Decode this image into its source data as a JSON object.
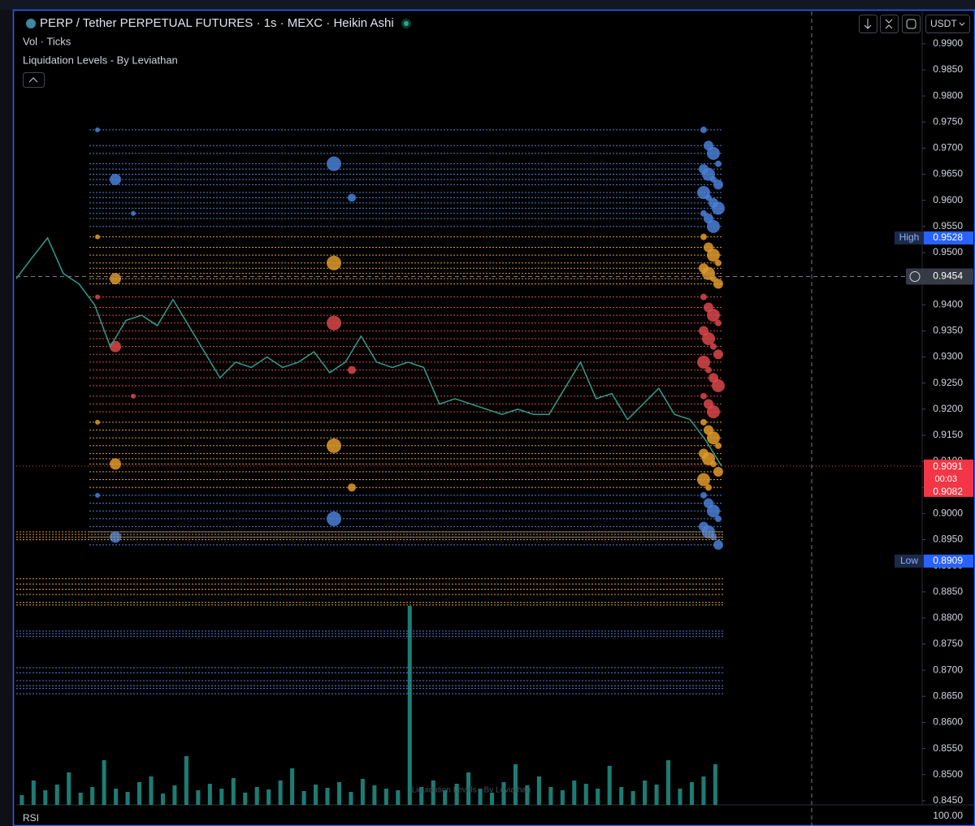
{
  "header": {
    "title": "PERP / Tether PERPETUAL FUTURES · 1s · MEXC · Heikin Ashi",
    "indicator_1": "Vol · Ticks",
    "indicator_2": "Liquidation Levels - By Leviathan",
    "currency": "USDT"
  },
  "chart_data": {
    "type": "line",
    "color": "#2f9e8f",
    "categories": [
      null,
      null,
      null,
      null,
      null,
      null,
      null,
      null,
      null,
      null,
      null,
      null,
      null,
      null,
      null,
      null,
      null,
      null,
      null,
      null,
      null,
      null,
      null,
      null,
      null,
      null,
      null,
      null,
      null,
      null,
      null,
      null,
      null,
      null,
      null,
      null,
      null,
      null,
      null,
      null,
      null,
      null,
      null,
      null,
      null,
      null
    ],
    "values": [
      0.945,
      0.949,
      0.9528,
      0.946,
      0.944,
      0.94,
      0.932,
      0.937,
      0.938,
      0.936,
      0.941,
      0.936,
      0.931,
      0.926,
      0.929,
      0.928,
      0.93,
      0.928,
      0.929,
      0.931,
      0.927,
      0.929,
      0.934,
      0.929,
      0.928,
      0.929,
      0.928,
      0.921,
      0.922,
      0.921,
      0.92,
      0.919,
      0.92,
      0.919,
      0.919,
      0.924,
      0.929,
      0.922,
      0.923,
      0.918,
      0.921,
      0.924,
      0.919,
      0.918,
      0.914,
      0.9091
    ],
    "ylim": [
      0.8442,
      0.9962
    ],
    "yticks": [
      {
        "value": 0.99,
        "label": "0.9900"
      },
      {
        "value": 0.985,
        "label": "0.9850"
      },
      {
        "value": 0.98,
        "label": "0.9800"
      },
      {
        "value": 0.975,
        "label": "0.9750"
      },
      {
        "value": 0.97,
        "label": "0.9700"
      },
      {
        "value": 0.965,
        "label": "0.9650"
      },
      {
        "value": 0.96,
        "label": "0.9600"
      },
      {
        "value": 0.955,
        "label": "0.9550"
      },
      {
        "value": 0.95,
        "label": "0.9500"
      },
      {
        "value": 0.945,
        "label": "0.9450"
      },
      {
        "value": 0.94,
        "label": "0.9400"
      },
      {
        "value": 0.935,
        "label": "0.9350"
      },
      {
        "value": 0.93,
        "label": "0.9300"
      },
      {
        "value": 0.925,
        "label": "0.9250"
      },
      {
        "value": 0.92,
        "label": "0.9200"
      },
      {
        "value": 0.915,
        "label": "0.9150"
      },
      {
        "value": 0.91,
        "label": "0.9100"
      },
      {
        "value": 0.905,
        "label": "0.9050"
      },
      {
        "value": 0.9,
        "label": "0.9000"
      },
      {
        "value": 0.895,
        "label": "0.8950"
      },
      {
        "value": 0.89,
        "label": "0.8900"
      },
      {
        "value": 0.885,
        "label": "0.8850"
      },
      {
        "value": 0.88,
        "label": "0.8800"
      },
      {
        "value": 0.875,
        "label": "0.8750"
      },
      {
        "value": 0.87,
        "label": "0.8700"
      },
      {
        "value": 0.865,
        "label": "0.8650"
      },
      {
        "value": 0.86,
        "label": "0.8600"
      },
      {
        "value": 0.855,
        "label": "0.8550"
      },
      {
        "value": 0.85,
        "label": "0.8500"
      },
      {
        "value": 0.845,
        "label": "0.8450"
      }
    ],
    "liquidation_levels": [
      {
        "color": "#4a7fd6",
        "values": [
          0.9735,
          0.9705,
          0.969,
          0.967,
          0.966,
          0.965,
          0.964,
          0.963,
          0.9615,
          0.9605,
          0.9595,
          0.9585,
          0.9575,
          0.9565,
          0.955
        ]
      },
      {
        "color": "#e09a2b",
        "values": [
          0.953,
          0.951,
          0.9495,
          0.948,
          0.947,
          0.946,
          0.945,
          0.944
        ]
      },
      {
        "color": "#d9474a",
        "values": [
          0.9415,
          0.9395,
          0.938,
          0.9365,
          0.935,
          0.9335,
          0.932,
          0.9305,
          0.929,
          0.9275,
          0.926,
          0.9245,
          0.9225,
          0.921,
          0.9195
        ]
      },
      {
        "color": "#e09a2b",
        "values": [
          0.9175,
          0.916,
          0.9145,
          0.913,
          0.9115,
          0.9105,
          0.9095,
          0.908,
          0.9065,
          0.905
        ]
      },
      {
        "color": "#4a7fd6",
        "values": [
          0.9035,
          0.902,
          0.9005,
          0.899,
          0.8975,
          0.8965,
          0.8955,
          0.894
        ]
      }
    ],
    "extended_levels": [
      {
        "color": "#e09a2b",
        "values": [
          0.8965,
          0.896,
          0.8955,
          0.895,
          0.8875,
          0.8865,
          0.8855,
          0.8845,
          0.883,
          0.8825
        ]
      },
      {
        "color": "#4a7fd6",
        "values": [
          0.8775,
          0.877,
          0.8765,
          0.8705,
          0.8695,
          0.868,
          0.867,
          0.8665,
          0.8655
        ]
      }
    ],
    "volume": {
      "color": "#26a69a",
      "values": [
        12,
        30,
        18,
        25,
        40,
        15,
        22,
        55,
        20,
        16,
        28,
        35,
        14,
        24,
        60,
        18,
        26,
        20,
        33,
        15,
        22,
        19,
        30,
        45,
        17,
        25,
        21,
        28,
        16,
        32,
        24,
        20,
        18,
        245,
        22,
        30,
        18,
        26,
        40,
        20,
        15,
        28,
        50,
        24,
        35,
        22,
        18,
        30,
        26,
        20,
        48,
        22,
        17,
        30,
        25,
        55,
        20,
        28,
        35,
        50
      ]
    },
    "high": {
      "name": "High",
      "price": {
        "value": 0.9528,
        "label": "0.9528"
      }
    },
    "low": {
      "name": "Low",
      "price": {
        "value": 0.8909,
        "label": "0.8909"
      }
    },
    "crosshair": {
      "value": 0.9454,
      "label": "0.9454"
    },
    "last_price": {
      "price": {
        "value": 0.9091,
        "label": "0.9091"
      },
      "countdown": "00:03",
      "open": {
        "value": 0.9082,
        "label": "0.9082"
      }
    },
    "watermark": "Liquidation Levels - By Leviathan"
  },
  "rsi": {
    "label": "RSI",
    "value": {
      "value": 100,
      "label": "100.00"
    }
  }
}
